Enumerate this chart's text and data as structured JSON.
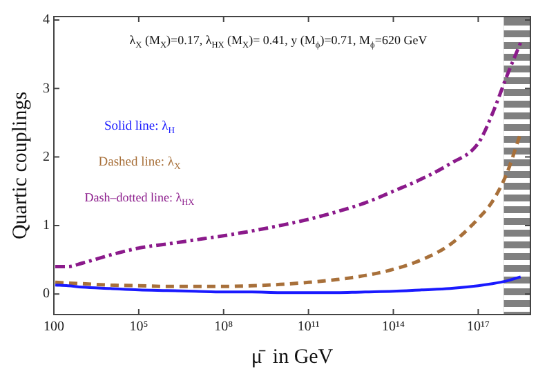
{
  "chart_data": {
    "type": "line",
    "xlabel": "μ̄  in GeV",
    "ylabel": "Quartic couplings",
    "annotations": [
      "λ$_{X}$ (M$_{X}$)=0.17, λ$_{HX}$ (M$_{X}$)= 0.41, y (M$_{ϕ}$)=0.71, M$_{ϕ}$=620 GeV"
    ],
    "x": [
      112,
      316,
      1000.0,
      10000.0,
      100000.0,
      1000000.0,
      10000000.0,
      100000000.0,
      1000000000.0,
      10000000000.0,
      100000000000.0,
      1000000000000.0,
      10000000000000.0,
      100000000000000.0,
      1000000000000000.0,
      1e+16,
      1e+17,
      3.16e+17,
      1e+18,
      3.16e+18
    ],
    "series": [
      {
        "name": "Solid line: λ$_{H}$",
        "color": "#1a1aff",
        "line_style": "solid",
        "values": [
          0.13,
          0.12,
          0.1,
          0.08,
          0.06,
          0.05,
          0.04,
          0.03,
          0.03,
          0.02,
          0.02,
          0.02,
          0.03,
          0.04,
          0.06,
          0.08,
          0.12,
          0.15,
          0.19,
          0.25
        ]
      },
      {
        "name": "Dashed line: λ$_{X}$",
        "color": "#a8703a",
        "line_style": "dashed",
        "values": [
          0.17,
          0.16,
          0.15,
          0.13,
          0.12,
          0.11,
          0.11,
          0.11,
          0.12,
          0.14,
          0.17,
          0.21,
          0.27,
          0.36,
          0.5,
          0.72,
          1.1,
          1.35,
          1.75,
          2.35
        ]
      },
      {
        "name": "Dash–dotted line: λ$_{HX}$",
        "color": "#8b1a8b",
        "line_style": "dashdot",
        "values": [
          0.4,
          0.4,
          0.45,
          0.57,
          0.67,
          0.73,
          0.79,
          0.85,
          0.92,
          1.0,
          1.09,
          1.2,
          1.33,
          1.5,
          1.68,
          1.9,
          2.2,
          2.63,
          3.17,
          3.67
        ]
      }
    ],
    "bands": [
      {
        "axis": "x",
        "from": 8e+17,
        "to": 7e+18,
        "color": "#808080"
      }
    ],
    "log": "x",
    "xlim": [
      100,
      7e+18
    ],
    "ylim": [
      -0.3,
      4.05
    ],
    "xticks": [
      100,
      {
        "value": 100000.0,
        "label": "10⁵"
      },
      {
        "value": 100000000.0,
        "label": "10⁸"
      },
      {
        "value": 100000000000.0,
        "label": "10¹¹"
      },
      {
        "value": 100000000000000.0,
        "label": "10¹⁴"
      },
      {
        "value": 1e+17,
        "label": "10¹⁷"
      }
    ],
    "yticks": [
      0,
      1,
      2,
      3,
      4
    ],
    "grid": false,
    "legend": "left",
    "marker": "none"
  }
}
